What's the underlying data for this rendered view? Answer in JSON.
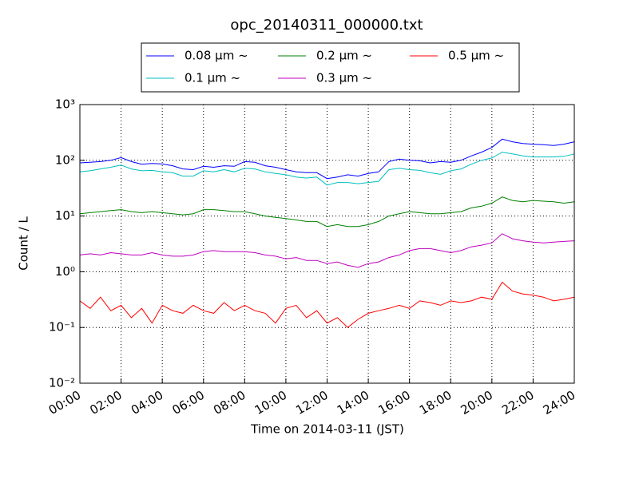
{
  "chart_data": {
    "type": "line",
    "title": "opc_20140311_000000.txt",
    "x_label": "Time on 2014-03-11 (JST)",
    "y_label": "Count / L",
    "x": [
      0,
      0.5,
      1,
      1.5,
      2,
      2.5,
      3,
      3.5,
      4,
      4.5,
      5,
      5.5,
      6,
      6.5,
      7,
      7.5,
      8,
      8.5,
      9,
      9.5,
      10,
      10.5,
      11,
      11.5,
      12,
      12.5,
      13,
      13.5,
      14,
      14.5,
      15,
      15.5,
      16,
      16.5,
      17,
      17.5,
      18,
      18.5,
      19,
      19.5,
      20,
      20.5,
      21,
      21.5,
      22,
      22.5,
      23,
      23.5,
      24
    ],
    "series": [
      {
        "name": "0.08 μm ~",
        "color": "#0000ff",
        "values": [
          90,
          92,
          95,
          100,
          112,
          95,
          85,
          88,
          86,
          80,
          70,
          68,
          78,
          75,
          80,
          78,
          95,
          92,
          80,
          75,
          68,
          62,
          60,
          60,
          47,
          50,
          55,
          52,
          58,
          62,
          95,
          105,
          100,
          98,
          90,
          95,
          92,
          100,
          120,
          140,
          170,
          240,
          215,
          200,
          195,
          190,
          185,
          195,
          215
        ]
      },
      {
        "name": "0.1 μm ~",
        "color": "#00bfbf",
        "values": [
          62,
          65,
          70,
          75,
          82,
          70,
          65,
          66,
          62,
          60,
          52,
          52,
          65,
          62,
          68,
          62,
          72,
          70,
          62,
          58,
          55,
          50,
          48,
          50,
          36,
          40,
          40,
          38,
          40,
          42,
          68,
          72,
          68,
          66,
          60,
          56,
          65,
          70,
          85,
          100,
          110,
          140,
          130,
          120,
          115,
          115,
          115,
          118,
          130
        ]
      },
      {
        "name": "0.2 μm ~",
        "color": "#008000",
        "values": [
          11,
          11.5,
          12,
          12.5,
          13,
          12,
          11.5,
          12,
          11.5,
          11,
          10.5,
          11,
          13,
          13,
          12.5,
          12,
          12,
          11,
          10,
          9.5,
          9,
          8.5,
          8,
          8,
          6.5,
          7,
          6.5,
          6.5,
          7,
          8,
          10,
          11,
          12,
          11.5,
          11,
          11,
          11.5,
          12,
          14,
          15,
          17,
          22,
          19,
          18,
          19,
          18.5,
          18,
          17,
          18
        ]
      },
      {
        "name": "0.3 μm ~",
        "color": "#bf00bf",
        "values": [
          2.0,
          2.1,
          2.0,
          2.2,
          2.1,
          2.0,
          2.0,
          2.2,
          2.0,
          1.9,
          1.9,
          2.0,
          2.3,
          2.4,
          2.3,
          2.3,
          2.3,
          2.2,
          2.0,
          1.9,
          1.7,
          1.8,
          1.6,
          1.6,
          1.4,
          1.5,
          1.3,
          1.2,
          1.4,
          1.5,
          1.8,
          2.0,
          2.4,
          2.6,
          2.6,
          2.4,
          2.2,
          2.4,
          2.8,
          3.0,
          3.3,
          4.8,
          3.9,
          3.6,
          3.4,
          3.3,
          3.4,
          3.5,
          3.6
        ]
      },
      {
        "name": "0.5 μm ~",
        "color": "#ff0000",
        "values": [
          0.3,
          0.22,
          0.35,
          0.2,
          0.25,
          0.15,
          0.22,
          0.12,
          0.25,
          0.2,
          0.18,
          0.25,
          0.2,
          0.18,
          0.28,
          0.2,
          0.25,
          0.2,
          0.18,
          0.12,
          0.22,
          0.25,
          0.15,
          0.2,
          0.12,
          0.15,
          0.1,
          0.14,
          0.18,
          0.2,
          0.22,
          0.25,
          0.22,
          0.3,
          0.28,
          0.25,
          0.3,
          0.28,
          0.3,
          0.35,
          0.32,
          0.65,
          0.45,
          0.4,
          0.38,
          0.35,
          0.3,
          0.32,
          0.35
        ]
      }
    ],
    "xlim": [
      0,
      24
    ],
    "xticks": [
      {
        "value": 0,
        "label": "00:00"
      },
      {
        "value": 2,
        "label": "02:00"
      },
      {
        "value": 4,
        "label": "04:00"
      },
      {
        "value": 6,
        "label": "06:00"
      },
      {
        "value": 8,
        "label": "08:00"
      },
      {
        "value": 10,
        "label": "10:00"
      },
      {
        "value": 12,
        "label": "12:00"
      },
      {
        "value": 14,
        "label": "14:00"
      },
      {
        "value": 16,
        "label": "16:00"
      },
      {
        "value": 18,
        "label": "18:00"
      },
      {
        "value": 20,
        "label": "20:00"
      },
      {
        "value": 22,
        "label": "22:00"
      },
      {
        "value": 24,
        "label": "24:00"
      }
    ],
    "ylim": [
      0.01,
      1000
    ],
    "y_scale": "log",
    "yticks": [
      {
        "value": 0.01,
        "label": "10⁻²"
      },
      {
        "value": 0.1,
        "label": "10⁻¹"
      },
      {
        "value": 1,
        "label": "10⁰"
      },
      {
        "value": 10,
        "label": "10¹"
      },
      {
        "value": 100,
        "label": "10²"
      },
      {
        "value": 1000,
        "label": "10³"
      }
    ],
    "grid": true,
    "legend_loc": "upper center"
  }
}
